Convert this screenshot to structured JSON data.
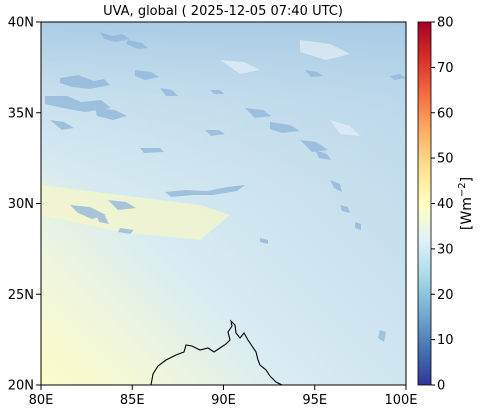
{
  "title": "UVA, global ( 2025-12-05 07:40 UTC)",
  "map": {
    "lat_ticks": [
      "40N",
      "35N",
      "30N",
      "25N",
      "20N"
    ],
    "lon_ticks": [
      "80E",
      "85E",
      "90E",
      "95E",
      "100E"
    ],
    "extent": {
      "lon_min": 80,
      "lon_max": 100,
      "lat_min": 20,
      "lat_max": 40
    }
  },
  "colorbar": {
    "label": "[Wm",
    "label_exponent": "−2",
    "label_close": "]",
    "ticks": [
      "80",
      "70",
      "60",
      "50",
      "40",
      "30",
      "20",
      "10",
      "0"
    ],
    "range": [
      0,
      80
    ],
    "colors": [
      "#313695",
      "#4575b4",
      "#74add1",
      "#abd9e9",
      "#e0f3f8",
      "#ffffbf",
      "#fee090",
      "#fdae61",
      "#f46d43",
      "#d73027",
      "#a50026"
    ]
  }
}
